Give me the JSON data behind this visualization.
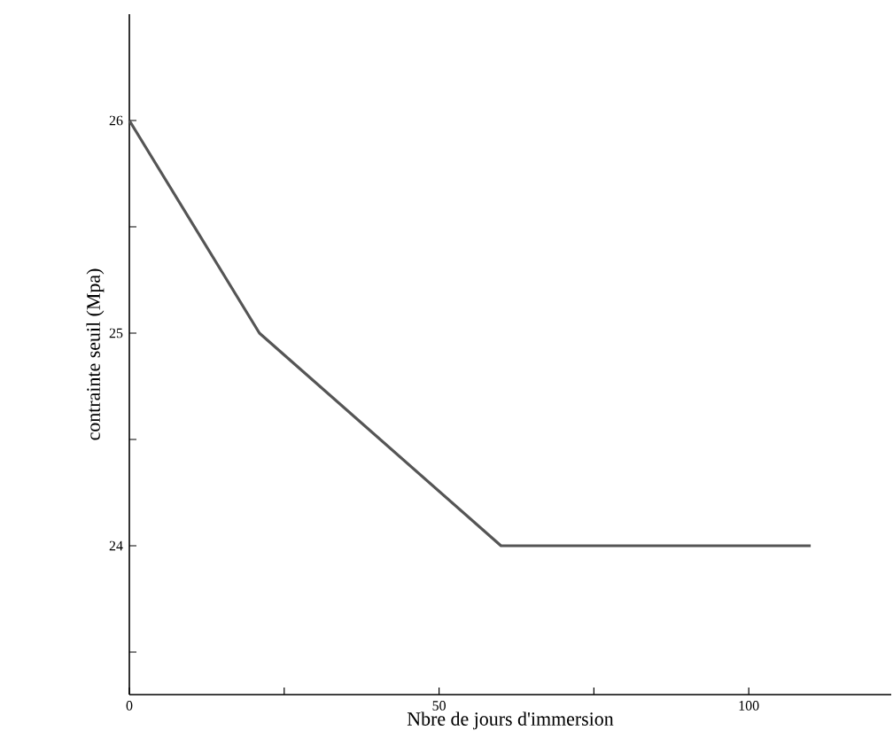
{
  "chart_data": {
    "type": "line",
    "xlabel": "Nbre de jours d'immersion",
    "ylabel": "contrainte seuil (Mpa)",
    "x": [
      0,
      21,
      60,
      110
    ],
    "series": [
      {
        "color": "#555555",
        "values": [
          26,
          25,
          24,
          24
        ]
      }
    ],
    "xlim": [
      0,
      123
    ],
    "ylim": [
      23.3,
      26.5
    ],
    "xticks": [
      0,
      {
        "value": 25,
        "label": null
      },
      50,
      {
        "value": 75,
        "label": null
      },
      100
    ],
    "yticks": [
      {
        "value": 23.5,
        "label": null
      },
      24,
      {
        "value": 24.5,
        "label": null
      },
      25,
      {
        "value": 25.5,
        "label": null
      },
      26
    ],
    "grid": false,
    "marker": "none",
    "line_style": "solid"
  }
}
